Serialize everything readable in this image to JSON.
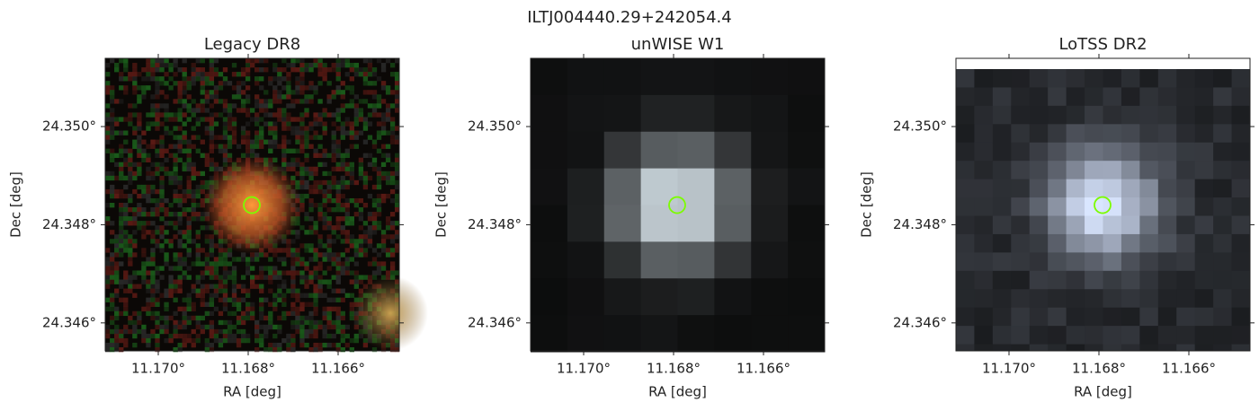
{
  "title": "ILTJ004440.29+242054.4",
  "panels": [
    {
      "type": "image",
      "title": "Legacy DR8",
      "xlabel": "RA [deg]",
      "ylabel": "Dec [deg]",
      "style": "legacy",
      "xlim": [
        11.17118,
        11.16464
      ],
      "ylim": [
        24.34543,
        24.35139
      ],
      "xticks": [
        {
          "value": 11.17,
          "label": "11.170°"
        },
        {
          "value": 11.168,
          "label": "11.168°"
        },
        {
          "value": 11.166,
          "label": "11.166°"
        }
      ],
      "yticks": [
        {
          "value": 24.346,
          "label": "24.346°"
        },
        {
          "value": 24.348,
          "label": "24.348°"
        },
        {
          "value": 24.35,
          "label": "24.350°"
        }
      ],
      "marker": {
        "x": 11.16792,
        "y": 24.3484,
        "color": "#7cfc00"
      }
    },
    {
      "type": "image",
      "title": "unWISE W1",
      "xlabel": "RA [deg]",
      "ylabel": "Dec [deg]",
      "style": "unwise",
      "xlim": [
        11.17118,
        11.16464
      ],
      "ylim": [
        24.34543,
        24.35139
      ],
      "xticks": [
        {
          "value": 11.17,
          "label": "11.170°"
        },
        {
          "value": 11.168,
          "label": "11.168°"
        },
        {
          "value": 11.166,
          "label": "11.166°"
        }
      ],
      "yticks": [
        {
          "value": 24.346,
          "label": "24.346°"
        },
        {
          "value": 24.348,
          "label": "24.348°"
        },
        {
          "value": 24.35,
          "label": "24.350°"
        }
      ],
      "marker": {
        "x": 11.16792,
        "y": 24.3484,
        "color": "#7cfc00"
      }
    },
    {
      "type": "image",
      "title": "LoTSS DR2",
      "xlabel": "RA [deg]",
      "ylabel": "Dec [deg]",
      "style": "lotss",
      "xlim": [
        11.17118,
        11.16464
      ],
      "ylim": [
        24.34543,
        24.35139
      ],
      "xticks": [
        {
          "value": 11.17,
          "label": "11.170°"
        },
        {
          "value": 11.168,
          "label": "11.168°"
        },
        {
          "value": 11.166,
          "label": "11.166°"
        }
      ],
      "yticks": [
        {
          "value": 24.346,
          "label": "24.346°"
        },
        {
          "value": 24.348,
          "label": "24.348°"
        },
        {
          "value": 24.35,
          "label": "24.350°"
        }
      ],
      "marker": {
        "x": 11.16792,
        "y": 24.3484,
        "color": "#7cfc00"
      }
    }
  ]
}
